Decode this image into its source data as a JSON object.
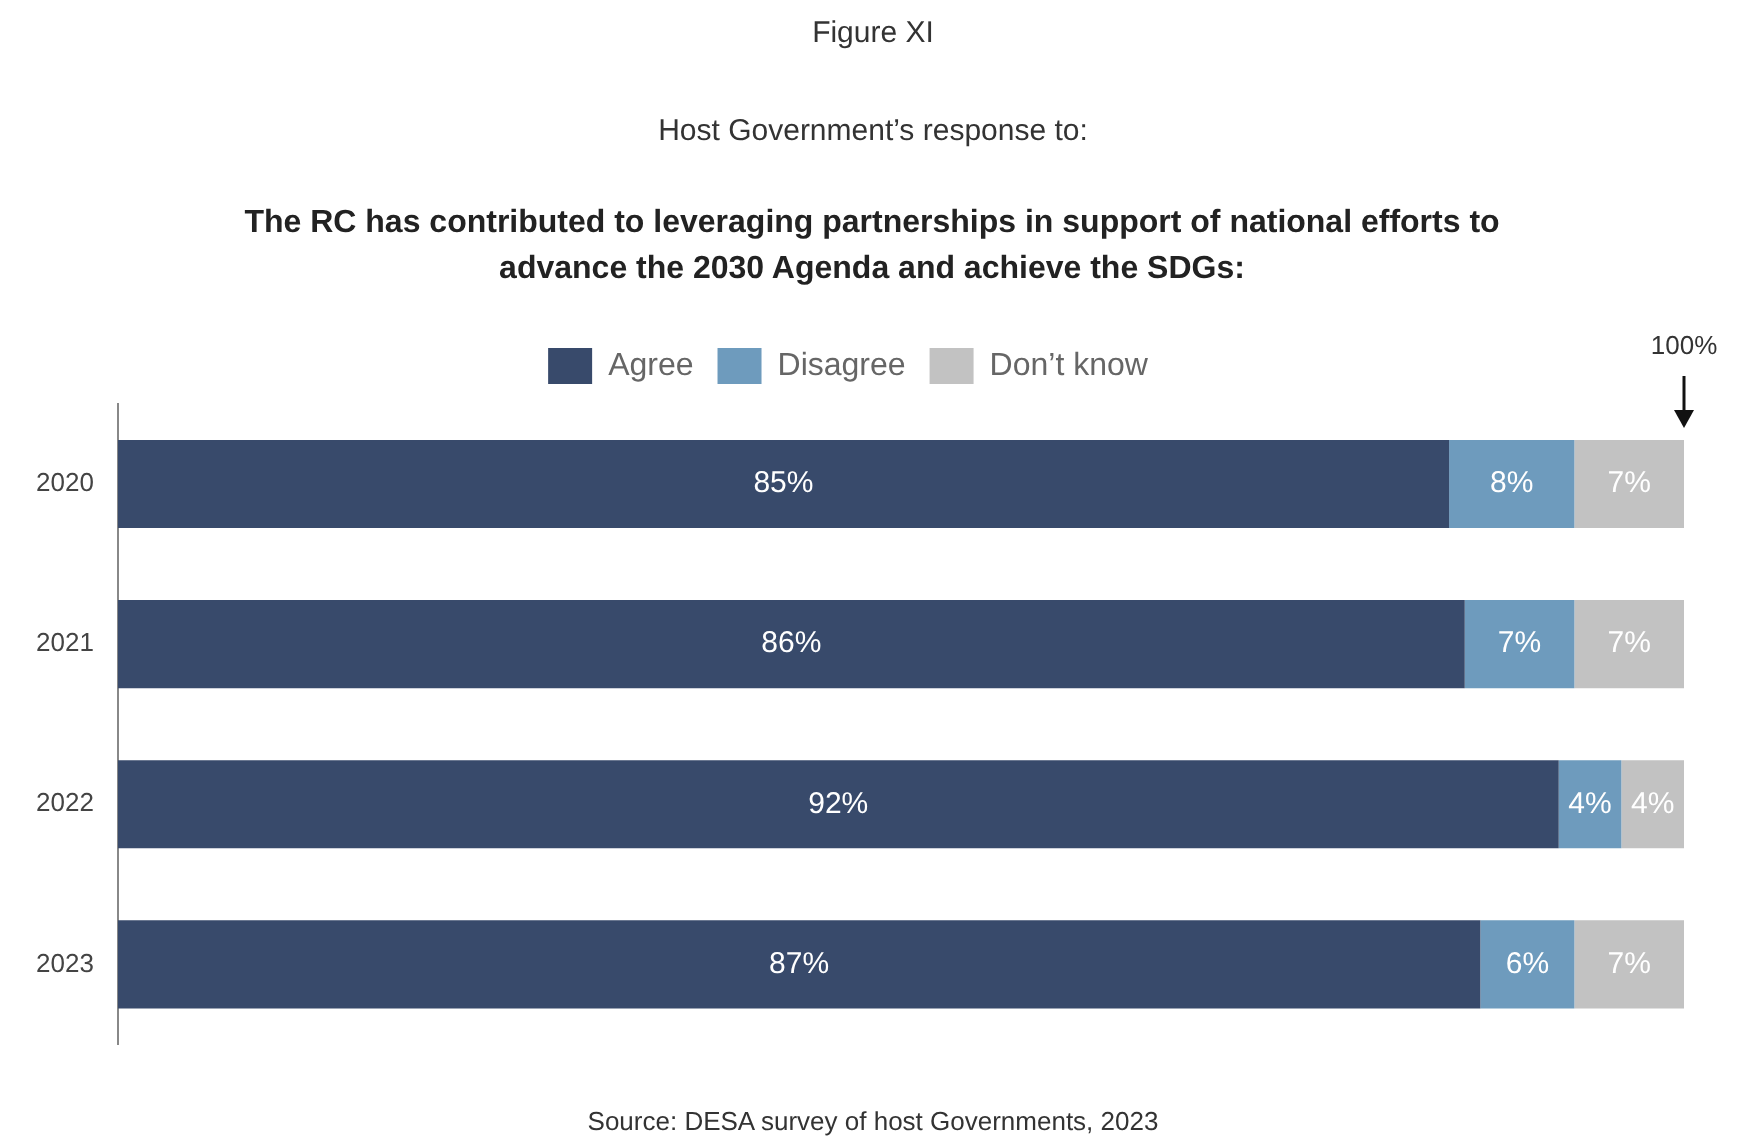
{
  "chart_data": {
    "type": "bar",
    "orientation": "horizontal",
    "stacked": true,
    "title": "The RC has contributed to leveraging partnerships in support of national efforts to advance the 2030 Agenda and achieve the SDGs:",
    "subtitle": "Host Government’s response to:",
    "categories": [
      "2020",
      "2021",
      "2022",
      "2023"
    ],
    "series": [
      {
        "name": "Agree",
        "color": "#384a6b",
        "values": [
          85,
          86,
          92,
          87
        ],
        "value_labels": [
          "85%",
          "86%",
          "92%",
          "87%"
        ]
      },
      {
        "name": "Disagree",
        "color": "#6e9bbd",
        "values": [
          8,
          7,
          4,
          6
        ],
        "value_labels": [
          "8%",
          "7%",
          "4%",
          "6%"
        ]
      },
      {
        "name": "Don’t know",
        "color": "#c2c2c2",
        "values": [
          7,
          7,
          4,
          7
        ],
        "value_labels": [
          "7%",
          "7%",
          "4%",
          "7%"
        ]
      }
    ],
    "xlim": [
      0,
      100
    ],
    "tick_labels": "y",
    "grid": false,
    "legend": "top",
    "annotations": [
      "Figure XI",
      "100%",
      "Source: DESA survey of host Governments, 2023"
    ]
  }
}
